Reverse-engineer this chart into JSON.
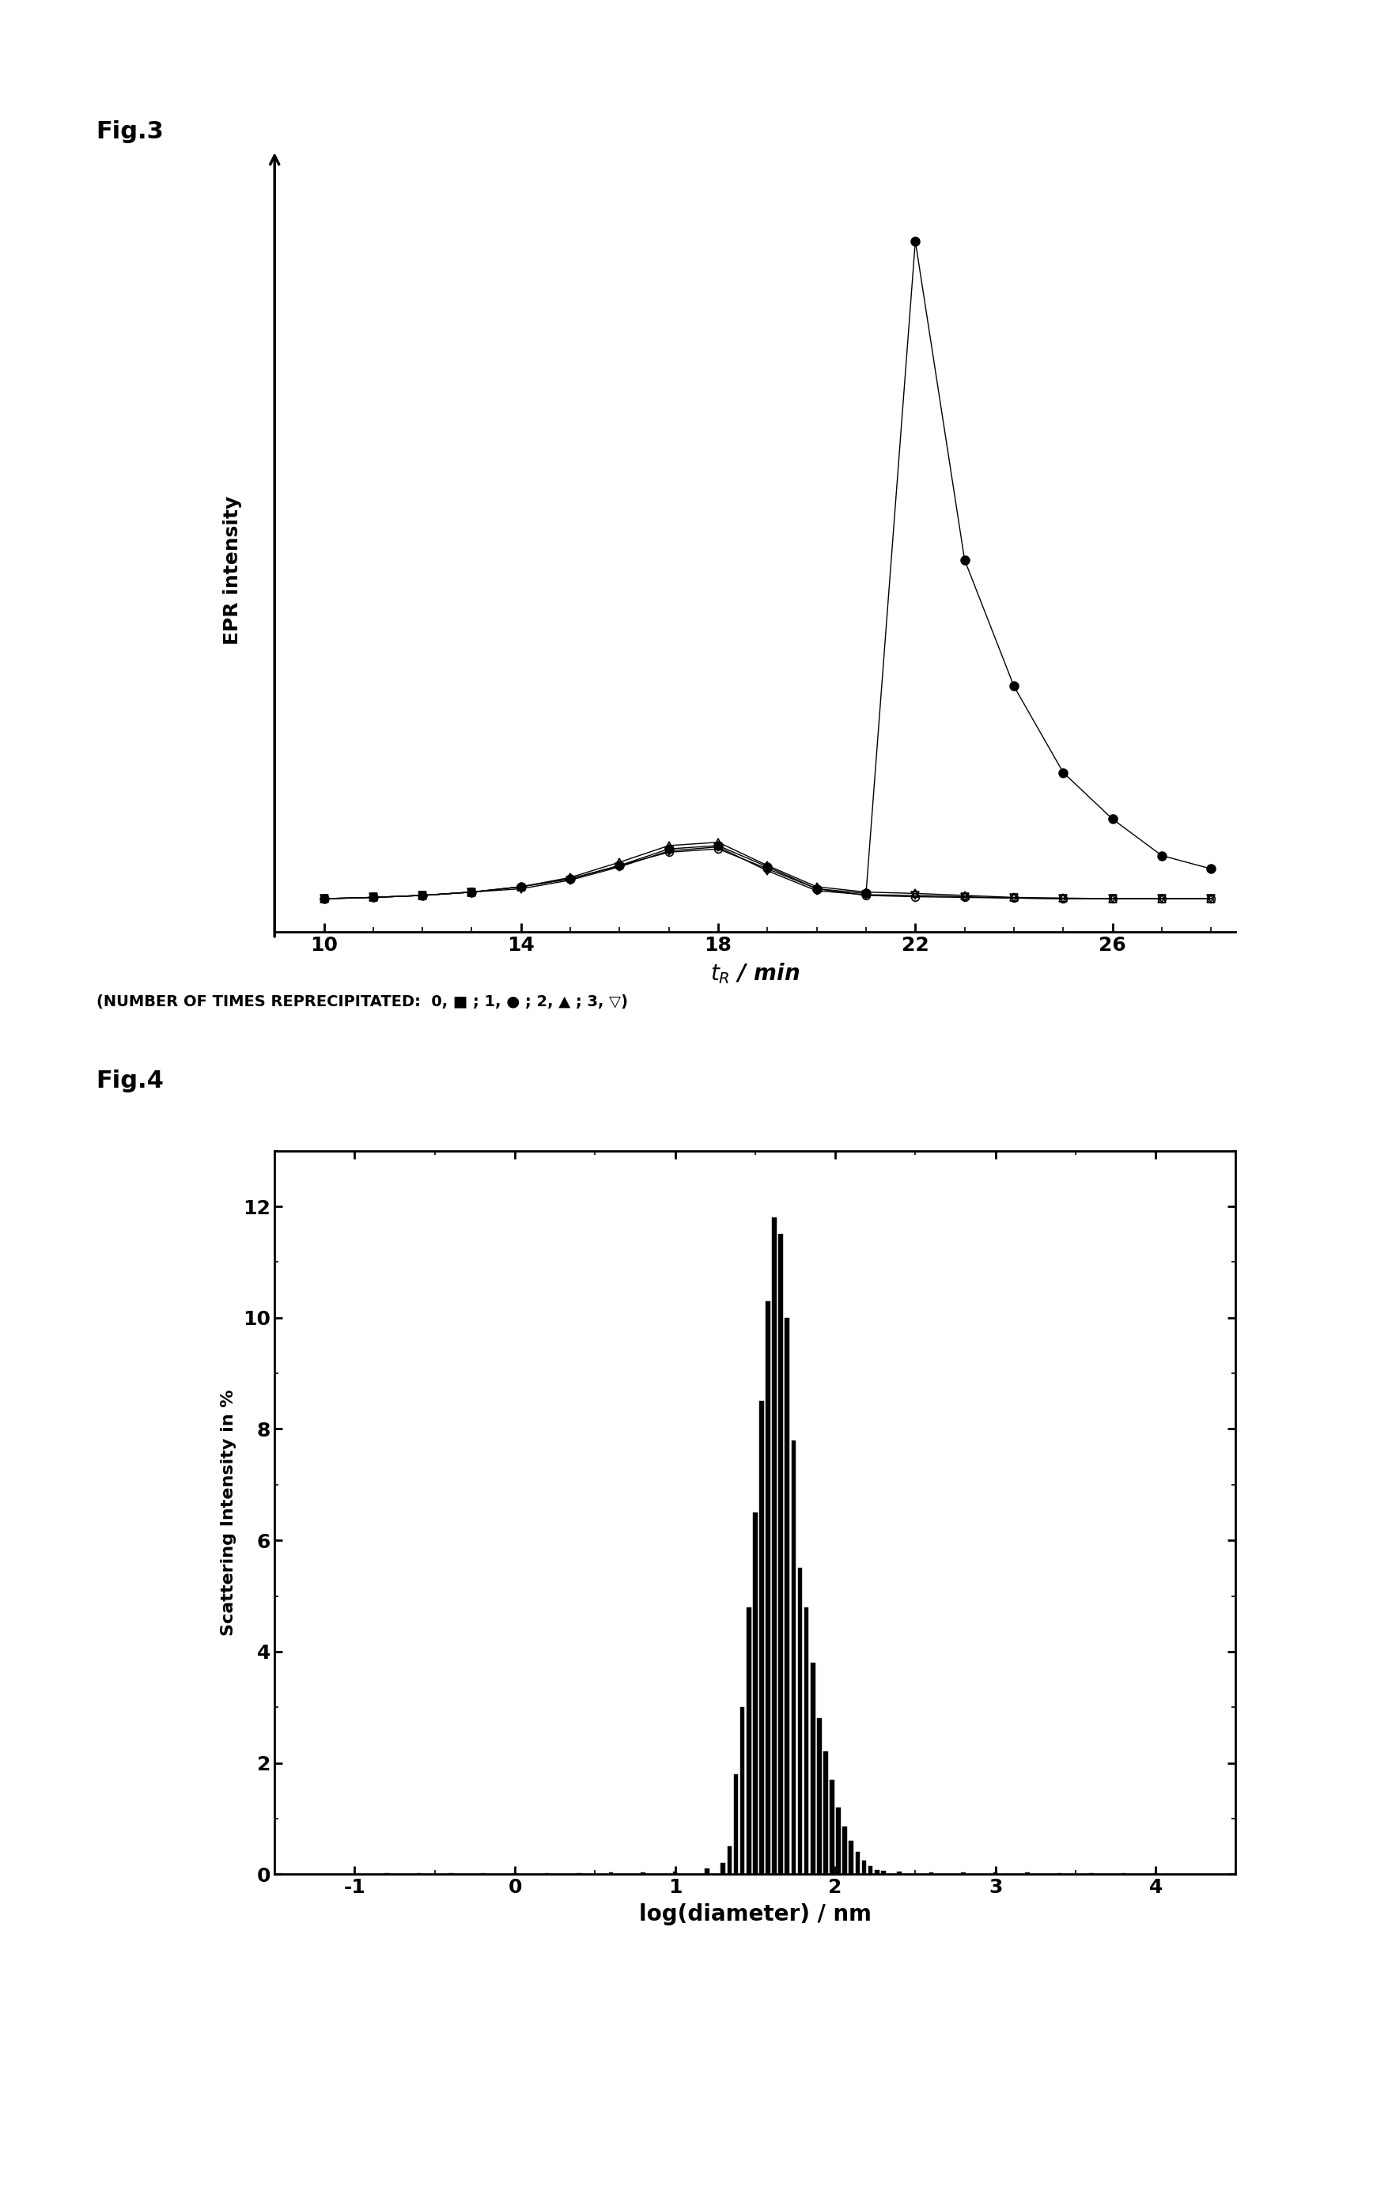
{
  "fig3_title": "Fig.3",
  "fig4_title": "Fig.4",
  "xlabel_fig3": "$t_R$ / min",
  "ylabel_fig3": "EPR intensity",
  "xticks_fig3": [
    10,
    14,
    18,
    22,
    26
  ],
  "xlim_fig3": [
    9.0,
    28.5
  ],
  "series0_x": [
    10,
    11,
    12,
    13,
    14,
    15,
    16,
    17,
    18,
    19,
    20,
    21,
    22,
    23,
    24,
    25,
    26,
    27,
    28
  ],
  "series0_y": [
    0.01,
    0.012,
    0.015,
    0.02,
    0.028,
    0.04,
    0.06,
    0.08,
    0.085,
    0.055,
    0.025,
    0.015,
    0.013,
    0.012,
    0.011,
    0.01,
    0.01,
    0.01,
    0.01
  ],
  "series1_x": [
    10,
    11,
    12,
    13,
    14,
    15,
    16,
    17,
    18,
    19,
    20,
    21,
    22,
    23,
    24,
    25,
    26,
    27,
    28
  ],
  "series1_y": [
    0.01,
    0.012,
    0.015,
    0.02,
    0.028,
    0.04,
    0.06,
    0.085,
    0.09,
    0.058,
    0.025,
    0.018,
    1.0,
    0.52,
    0.33,
    0.2,
    0.13,
    0.075,
    0.055
  ],
  "series2_x": [
    10,
    11,
    12,
    13,
    14,
    15,
    16,
    17,
    18,
    19,
    20,
    21,
    22,
    23,
    24,
    25,
    26,
    27,
    28
  ],
  "series2_y": [
    0.01,
    0.012,
    0.015,
    0.02,
    0.028,
    0.042,
    0.065,
    0.09,
    0.095,
    0.06,
    0.028,
    0.02,
    0.018,
    0.015,
    0.012,
    0.011,
    0.01,
    0.01,
    0.01
  ],
  "series3_x": [
    10,
    11,
    12,
    13,
    14,
    15,
    16,
    17,
    18,
    19,
    20,
    21,
    22,
    23,
    24,
    25,
    26,
    27,
    28
  ],
  "series3_y": [
    0.01,
    0.012,
    0.015,
    0.02,
    0.025,
    0.038,
    0.058,
    0.082,
    0.088,
    0.052,
    0.022,
    0.016,
    0.015,
    0.013,
    0.011,
    0.01,
    0.01,
    0.01,
    0.01
  ],
  "xlabel_fig4": "log(diameter) / nm",
  "ylabel_fig4": "Scattering Intensity in %",
  "xticks_fig4": [
    -1,
    0,
    1,
    2,
    3,
    4
  ],
  "yticks_fig4": [
    0,
    2,
    4,
    6,
    8,
    10,
    12
  ],
  "xlim_fig4": [
    -1.5,
    4.5
  ],
  "ylim_fig4": [
    0,
    13
  ],
  "bar_centers": [
    -0.8,
    -0.6,
    -0.4,
    -0.2,
    0.0,
    0.2,
    0.4,
    0.6,
    0.8,
    1.0,
    1.2,
    1.3,
    1.34,
    1.38,
    1.42,
    1.46,
    1.5,
    1.54,
    1.58,
    1.62,
    1.66,
    1.7,
    1.74,
    1.78,
    1.82,
    1.86,
    1.9,
    1.94,
    1.98,
    2.02,
    2.06,
    2.1,
    2.14,
    2.18,
    2.22,
    2.26,
    2.3,
    2.4,
    2.6,
    2.8,
    3.0,
    3.2,
    3.4,
    3.6,
    3.8,
    4.0
  ],
  "bar_heights": [
    0.02,
    0.02,
    0.02,
    0.02,
    0.02,
    0.02,
    0.02,
    0.03,
    0.03,
    0.05,
    0.1,
    0.2,
    0.5,
    1.8,
    3.0,
    4.8,
    6.5,
    8.5,
    10.3,
    11.8,
    11.5,
    10.0,
    7.8,
    5.5,
    4.8,
    3.8,
    2.8,
    2.2,
    1.7,
    1.2,
    0.85,
    0.6,
    0.4,
    0.25,
    0.15,
    0.08,
    0.06,
    0.04,
    0.03,
    0.03,
    0.03,
    0.03,
    0.02,
    0.02,
    0.02,
    0.02
  ],
  "bar_width": 0.028,
  "background_color": "#ffffff",
  "line_color": "#000000"
}
